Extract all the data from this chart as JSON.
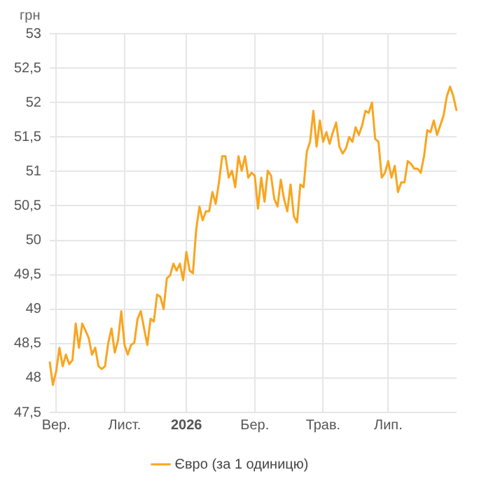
{
  "chart_data": {
    "type": "line",
    "ylabel": "грн",
    "categories": [
      null,
      null,
      "Вер.",
      null,
      null,
      null,
      null,
      null,
      null,
      null,
      null,
      null,
      null,
      null,
      null,
      null,
      null,
      null,
      null,
      null,
      null,
      null,
      null,
      "Лист.",
      null,
      null,
      null,
      null,
      null,
      null,
      null,
      null,
      null,
      null,
      null,
      null,
      null,
      null,
      null,
      null,
      null,
      null,
      "2026",
      null,
      null,
      null,
      null,
      null,
      null,
      null,
      null,
      null,
      null,
      null,
      null,
      null,
      null,
      null,
      null,
      null,
      null,
      null,
      null,
      "Бер.",
      null,
      null,
      null,
      null,
      null,
      null,
      null,
      null,
      null,
      null,
      null,
      null,
      null,
      null,
      null,
      null,
      null,
      null,
      null,
      null,
      "Трав.",
      null,
      null,
      null,
      null,
      null,
      null,
      null,
      null,
      null,
      null,
      null,
      null,
      null,
      null,
      null,
      null,
      null,
      null,
      null,
      "Лип.",
      null,
      null,
      null,
      null,
      null,
      null,
      null,
      null,
      null,
      null,
      null,
      null,
      null,
      null,
      null,
      null,
      null,
      null,
      null,
      null,
      null
    ],
    "series": [
      {
        "name": "Євро (за 1 одиницю)",
        "color": "#f9a51f",
        "values": [
          48.24,
          47.9,
          48.1,
          48.44,
          48.17,
          48.34,
          48.2,
          48.26,
          48.79,
          48.44,
          48.79,
          48.69,
          48.58,
          48.34,
          48.44,
          48.17,
          48.13,
          48.17,
          48.51,
          48.72,
          48.37,
          48.55,
          48.97,
          48.48,
          48.34,
          48.48,
          48.51,
          48.86,
          48.97,
          48.72,
          48.48,
          48.86,
          48.82,
          49.21,
          49.18,
          49.0,
          49.45,
          49.49,
          49.66,
          49.56,
          49.66,
          49.42,
          49.83,
          49.56,
          49.52,
          50.15,
          50.49,
          50.29,
          50.42,
          50.42,
          50.7,
          50.53,
          50.84,
          51.22,
          51.22,
          50.91,
          51.01,
          50.77,
          51.22,
          51.01,
          51.22,
          50.91,
          50.98,
          50.94,
          50.46,
          50.91,
          50.56,
          51.01,
          50.94,
          50.6,
          50.49,
          50.88,
          50.6,
          50.42,
          50.81,
          50.35,
          50.26,
          50.81,
          50.77,
          51.29,
          51.43,
          51.88,
          51.36,
          51.74,
          51.43,
          51.57,
          51.4,
          51.57,
          51.71,
          51.36,
          51.26,
          51.33,
          51.5,
          51.43,
          51.64,
          51.53,
          51.67,
          51.88,
          51.85,
          52.0,
          51.47,
          51.43,
          50.91,
          50.98,
          51.15,
          50.91,
          51.08,
          50.7,
          50.84,
          50.84,
          51.15,
          51.11,
          51.04,
          51.04,
          50.98,
          51.22,
          51.6,
          51.57,
          51.74,
          51.53,
          51.67,
          51.81,
          52.09,
          52.23,
          52.09,
          51.88
        ]
      }
    ],
    "ylim": [
      47.5,
      53
    ],
    "yticks": [
      {
        "value": 47.5,
        "label": "47,5"
      },
      {
        "value": 48,
        "label": "48"
      },
      {
        "value": 48.5,
        "label": "48,5"
      },
      {
        "value": 49,
        "label": "49"
      },
      {
        "value": 49.5,
        "label": "49,5"
      },
      {
        "value": 50,
        "label": "50"
      },
      {
        "value": 50.5,
        "label": "50,5"
      },
      {
        "value": 51,
        "label": "51"
      },
      {
        "value": 51.5,
        "label": "51,5"
      },
      {
        "value": 52,
        "label": "52"
      },
      {
        "value": 52.5,
        "label": "52,5"
      },
      {
        "value": 53,
        "label": "53"
      }
    ],
    "grid": true,
    "legend": "bottom",
    "marker": "none",
    "line_style": "solid"
  }
}
